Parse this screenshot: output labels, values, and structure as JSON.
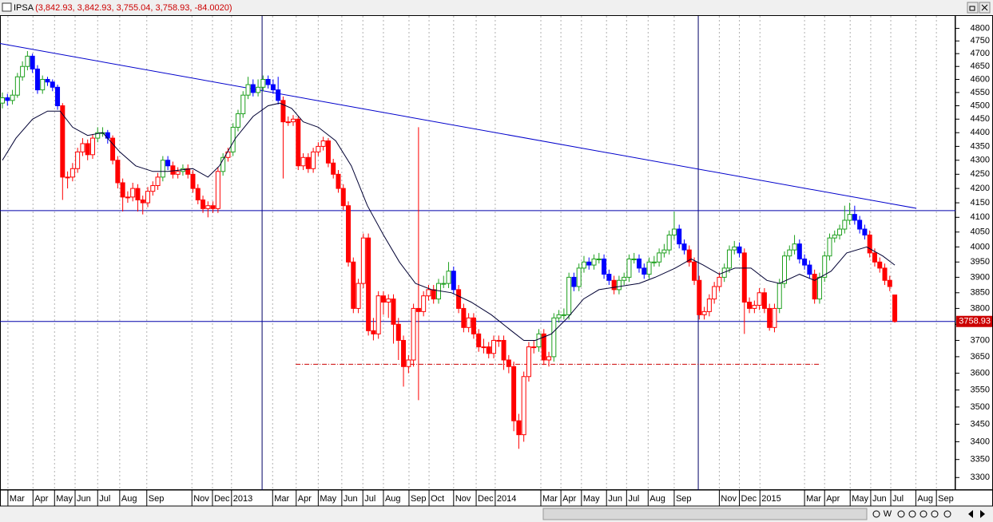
{
  "chart_data": {
    "type": "candlestick",
    "title": "IPSA",
    "subtitle": "(3,842.93, 3,842.93, 3,755.04, 3,758.93, -84.0020)",
    "log_scale": true,
    "ylim": [
      3270,
      4850
    ],
    "xlim": [
      -0.48,
      190.1
    ],
    "yticks": [
      4800,
      4750,
      4700,
      4650,
      4600,
      4550,
      4500,
      4450,
      4400,
      4350,
      4300,
      4250,
      4200,
      4150,
      4100,
      4050,
      4000,
      3950,
      3900,
      3850,
      3800,
      3750,
      3700,
      3650,
      3600,
      3550,
      3500,
      3450,
      3400,
      3350,
      3300
    ],
    "xticks": [
      {
        "value": 1.1,
        "label": "Mar"
      },
      {
        "value": 6.1,
        "label": "Apr"
      },
      {
        "value": 10.4,
        "label": "May"
      },
      {
        "value": 14.5,
        "label": "Jun"
      },
      {
        "value": 19.0,
        "label": "Jul"
      },
      {
        "value": 23.4,
        "label": "Aug"
      },
      {
        "value": 28.8,
        "label": "Sep"
      },
      {
        "value": 37.8,
        "label": "Nov"
      },
      {
        "value": 41.9,
        "label": "Dec"
      },
      {
        "value": 45.7,
        "label": "2013"
      },
      {
        "value": 53.9,
        "label": "Mar"
      },
      {
        "value": 58.6,
        "label": "Apr"
      },
      {
        "value": 63.0,
        "label": "May"
      },
      {
        "value": 67.7,
        "label": "Jun"
      },
      {
        "value": 71.9,
        "label": "Jul"
      },
      {
        "value": 76.0,
        "label": "Aug"
      },
      {
        "value": 81.1,
        "label": "Sep"
      },
      {
        "value": 85.1,
        "label": "Oct"
      },
      {
        "value": 90.0,
        "label": "Nov"
      },
      {
        "value": 94.5,
        "label": "Dec"
      },
      {
        "value": 98.3,
        "label": "2014"
      },
      {
        "value": 107.4,
        "label": "Mar"
      },
      {
        "value": 111.4,
        "label": "Apr"
      },
      {
        "value": 115.5,
        "label": "May"
      },
      {
        "value": 120.5,
        "label": "Jun"
      },
      {
        "value": 124.5,
        "label": "Jul"
      },
      {
        "value": 128.8,
        "label": "Aug"
      },
      {
        "value": 134.0,
        "label": "Sep"
      },
      {
        "value": 143.0,
        "label": "Nov"
      },
      {
        "value": 147.0,
        "label": "Dec"
      },
      {
        "value": 151.1,
        "label": "2015"
      },
      {
        "value": 160.0,
        "label": "Mar"
      },
      {
        "value": 164.0,
        "label": "Apr"
      },
      {
        "value": 169.1,
        "label": "May"
      },
      {
        "value": 173.2,
        "label": "Jun"
      },
      {
        "value": 177.2,
        "label": "Jul"
      },
      {
        "value": 182.2,
        "label": "Aug"
      },
      {
        "value": 186.3,
        "label": "Sep"
      }
    ],
    "colors": {
      "up": "#1ea01e",
      "down": "#0000ff",
      "below_ma": "#ff0000",
      "ma": "#000033",
      "trendline": "#0000cc",
      "hline": "#0000aa",
      "support": "#cc0000",
      "vline": "#000066"
    },
    "open": [
      4510,
      4530,
      4520,
      4540,
      4610,
      4650,
      4690,
      4640,
      4560,
      4600,
      4590,
      4570,
      4500,
      4240,
      4240,
      4270,
      4330,
      4360,
      4320,
      4380,
      4400,
      4400,
      4380,
      4300,
      4220,
      4170,
      4170,
      4200,
      4160,
      4150,
      4190,
      4210,
      4240,
      4300,
      4280,
      4250,
      4260,
      4270,
      4250,
      4200,
      4160,
      4130,
      4140,
      4130,
      4260,
      4310,
      4330,
      4420,
      4470,
      4540,
      4580,
      4550,
      4570,
      4600,
      4580,
      4560,
      4520,
      4440,
      4440,
      4450,
      4280,
      4310,
      4270,
      4330,
      4350,
      4370,
      4290,
      4250,
      4200,
      4140,
      3950,
      3800,
      3880,
      4030,
      3730,
      3720,
      3840,
      3820,
      3830,
      3750,
      3700,
      3620,
      3640,
      3800,
      3790,
      3840,
      3860,
      3830,
      3880,
      3880,
      3920,
      3860,
      3800,
      3740,
      3770,
      3720,
      3680,
      3680,
      3660,
      3700,
      3700,
      3640,
      3620,
      3460,
      3420,
      3590,
      3680,
      3680,
      3720,
      3640,
      3650,
      3770,
      3780,
      3780,
      3900,
      3870,
      3930,
      3950,
      3940,
      3960,
      3960,
      3910,
      3890,
      3860,
      3890,
      3900,
      3960,
      3960,
      3930,
      3910,
      3950,
      3950,
      3980,
      3990,
      4040,
      4060,
      4010,
      3990,
      3950,
      3890,
      3780,
      3790,
      3830,
      3870,
      3900,
      3930,
      3990,
      4000,
      3980,
      3820,
      3800,
      3810,
      3850,
      3800,
      3740,
      3800,
      3880,
      3970,
      3990,
      4010,
      3960,
      3940,
      3910,
      3830,
      3900,
      3970,
      4030,
      4040,
      4060,
      4090,
      4110,
      4090,
      4060,
      4040,
      3980,
      3950,
      3930,
      3890,
      3842.93
    ],
    "high": [
      4550,
      4545,
      4560,
      4625,
      4670,
      4710,
      4700,
      4655,
      4615,
      4610,
      4600,
      4580,
      4510,
      4260,
      4290,
      4345,
      4380,
      4375,
      4395,
      4420,
      4420,
      4410,
      4390,
      4315,
      4235,
      4190,
      4220,
      4215,
      4175,
      4205,
      4225,
      4255,
      4315,
      4315,
      4295,
      4275,
      4285,
      4285,
      4265,
      4215,
      4175,
      4155,
      4155,
      4275,
      4325,
      4345,
      4435,
      4485,
      4555,
      4610,
      4600,
      4600,
      4615,
      4615,
      4600,
      4610,
      4535,
      4460,
      4465,
      4460,
      4325,
      4325,
      4345,
      4365,
      4385,
      4380,
      4305,
      4265,
      4215,
      4155,
      3965,
      3895,
      4045,
      4045,
      3770,
      3855,
      3855,
      3845,
      3845,
      3770,
      3715,
      3655,
      3815,
      4420,
      3855,
      3875,
      3875,
      3895,
      3905,
      3950,
      3935,
      3875,
      3815,
      3785,
      3785,
      3735,
      3705,
      3695,
      3715,
      3715,
      3715,
      3655,
      3635,
      3480,
      3605,
      3695,
      3700,
      3735,
      3735,
      3665,
      3785,
      3795,
      3800,
      3915,
      3915,
      3945,
      3970,
      3965,
      3975,
      3980,
      3975,
      3925,
      3905,
      3905,
      3915,
      3975,
      3980,
      3975,
      3945,
      3965,
      3970,
      3995,
      4010,
      4055,
      4120,
      4075,
      4025,
      4005,
      3965,
      3905,
      3805,
      3845,
      3885,
      3915,
      3945,
      4005,
      4020,
      4015,
      3995,
      3835,
      3825,
      3865,
      3865,
      3815,
      3815,
      3895,
      3985,
      4005,
      4040,
      4025,
      3975,
      3955,
      3925,
      3915,
      3985,
      4045,
      4055,
      4075,
      4140,
      4150,
      4140,
      4105,
      4075,
      4055,
      3995,
      3965,
      3945,
      3905,
      3842.93
    ],
    "low": [
      4490,
      4500,
      4505,
      4530,
      4595,
      4635,
      4625,
      4545,
      4545,
      4575,
      4555,
      4485,
      4160,
      4200,
      4225,
      4255,
      4315,
      4300,
      4305,
      4365,
      4385,
      4360,
      4285,
      4200,
      4120,
      4150,
      4155,
      4120,
      4110,
      4135,
      4175,
      4195,
      4225,
      4265,
      4235,
      4235,
      4245,
      4235,
      4185,
      4145,
      4115,
      4100,
      4115,
      4115,
      4245,
      4295,
      4315,
      4405,
      4455,
      4525,
      4535,
      4535,
      4555,
      4565,
      4545,
      4505,
      4235,
      4425,
      4425,
      4265,
      4265,
      4255,
      4255,
      4315,
      4335,
      4275,
      4235,
      4185,
      4125,
      3935,
      3785,
      3785,
      3865,
      3715,
      3700,
      3705,
      3780,
      3770,
      3690,
      3640,
      3560,
      3600,
      3620,
      3520,
      3775,
      3825,
      3815,
      3815,
      3865,
      3865,
      3845,
      3785,
      3725,
      3725,
      3705,
      3665,
      3660,
      3645,
      3645,
      3680,
      3610,
      3600,
      3430,
      3380,
      3400,
      3575,
      3660,
      3665,
      3625,
      3620,
      3635,
      3755,
      3765,
      3765,
      3855,
      3855,
      3915,
      3925,
      3925,
      3945,
      3895,
      3875,
      3845,
      3845,
      3875,
      3885,
      3945,
      3915,
      3895,
      3895,
      3935,
      3935,
      3965,
      3975,
      4025,
      3995,
      3975,
      3935,
      3875,
      3765,
      3765,
      3775,
      3815,
      3855,
      3885,
      3915,
      3975,
      3965,
      3720,
      3785,
      3785,
      3795,
      3785,
      3730,
      3725,
      3785,
      3865,
      3955,
      3975,
      3945,
      3925,
      3895,
      3815,
      3815,
      3885,
      3955,
      4015,
      4025,
      4045,
      4075,
      4075,
      4045,
      4025,
      3965,
      3935,
      3915,
      3875,
      3855,
      3755.04
    ],
    "close": [
      4530,
      4520,
      4540,
      4610,
      4650,
      4690,
      4640,
      4560,
      4600,
      4590,
      4570,
      4500,
      4240,
      4240,
      4270,
      4330,
      4360,
      4320,
      4380,
      4400,
      4400,
      4380,
      4300,
      4220,
      4170,
      4170,
      4200,
      4160,
      4150,
      4190,
      4210,
      4240,
      4300,
      4280,
      4250,
      4260,
      4270,
      4250,
      4200,
      4160,
      4130,
      4140,
      4130,
      4260,
      4310,
      4330,
      4420,
      4470,
      4540,
      4580,
      4550,
      4570,
      4600,
      4580,
      4560,
      4520,
      4440,
      4440,
      4450,
      4280,
      4310,
      4270,
      4330,
      4350,
      4370,
      4290,
      4250,
      4200,
      4140,
      3950,
      3800,
      3880,
      4030,
      3730,
      3720,
      3840,
      3820,
      3830,
      3750,
      3700,
      3620,
      3640,
      3800,
      3790,
      3840,
      3860,
      3830,
      3880,
      3880,
      3920,
      3860,
      3800,
      3740,
      3770,
      3720,
      3680,
      3680,
      3660,
      3700,
      3700,
      3640,
      3620,
      3460,
      3420,
      3590,
      3680,
      3680,
      3720,
      3640,
      3650,
      3770,
      3780,
      3780,
      3900,
      3870,
      3930,
      3950,
      3940,
      3960,
      3960,
      3910,
      3890,
      3860,
      3890,
      3900,
      3960,
      3960,
      3930,
      3910,
      3950,
      3950,
      3980,
      3990,
      4040,
      4060,
      4010,
      3990,
      3950,
      3890,
      3780,
      3790,
      3830,
      3870,
      3900,
      3930,
      3990,
      4000,
      3980,
      3820,
      3800,
      3810,
      3850,
      3800,
      3740,
      3800,
      3880,
      3970,
      3990,
      4010,
      3960,
      3940,
      3910,
      3830,
      3900,
      3970,
      4030,
      4040,
      4060,
      4090,
      4110,
      4090,
      4060,
      4040,
      3980,
      3950,
      3930,
      3890,
      3870,
      3758.93
    ],
    "ma": {
      "x": [
        0,
        2.7,
        6,
        9,
        11.5,
        14,
        17,
        20,
        23.4,
        26.6,
        30,
        33,
        38,
        41,
        43.3,
        46.5,
        50,
        53,
        55.3,
        57.7,
        60,
        63,
        66.5,
        69.6,
        72.8,
        76,
        79.2,
        82.4,
        85.6,
        89.6,
        93.5,
        97.5,
        101.5,
        104,
        106.3,
        109.5,
        112.7,
        115.9,
        119,
        123,
        127,
        130.2,
        134.2,
        137.4,
        139.8,
        143,
        146.1,
        149.3,
        152.5,
        155,
        159,
        162,
        165.3,
        168.4,
        172.4,
        175.6,
        178
      ],
      "values": [
        4300,
        4380,
        4450,
        4480,
        4480,
        4420,
        4390,
        4400,
        4330,
        4280,
        4260,
        4260,
        4270,
        4240,
        4280,
        4380,
        4460,
        4500,
        4510,
        4490,
        4440,
        4420,
        4370,
        4280,
        4140,
        4040,
        3950,
        3880,
        3860,
        3850,
        3820,
        3780,
        3730,
        3700,
        3700,
        3720,
        3770,
        3830,
        3860,
        3870,
        3880,
        3900,
        3930,
        3960,
        3940,
        3910,
        3930,
        3930,
        3890,
        3880,
        3910,
        3890,
        3920,
        3980,
        4000,
        3970,
        3940
      ]
    },
    "trendline": {
      "x": [
        -0.48,
        182.3
      ],
      "values": [
        4740,
        4131
      ]
    },
    "hlines": [
      4123,
      3758.93
    ],
    "support": {
      "x": [
        58.5,
        163.2
      ],
      "values": [
        3627,
        3627
      ]
    },
    "vlines": [
      51.8,
      138.8
    ],
    "toolbar": [
      "W"
    ]
  }
}
